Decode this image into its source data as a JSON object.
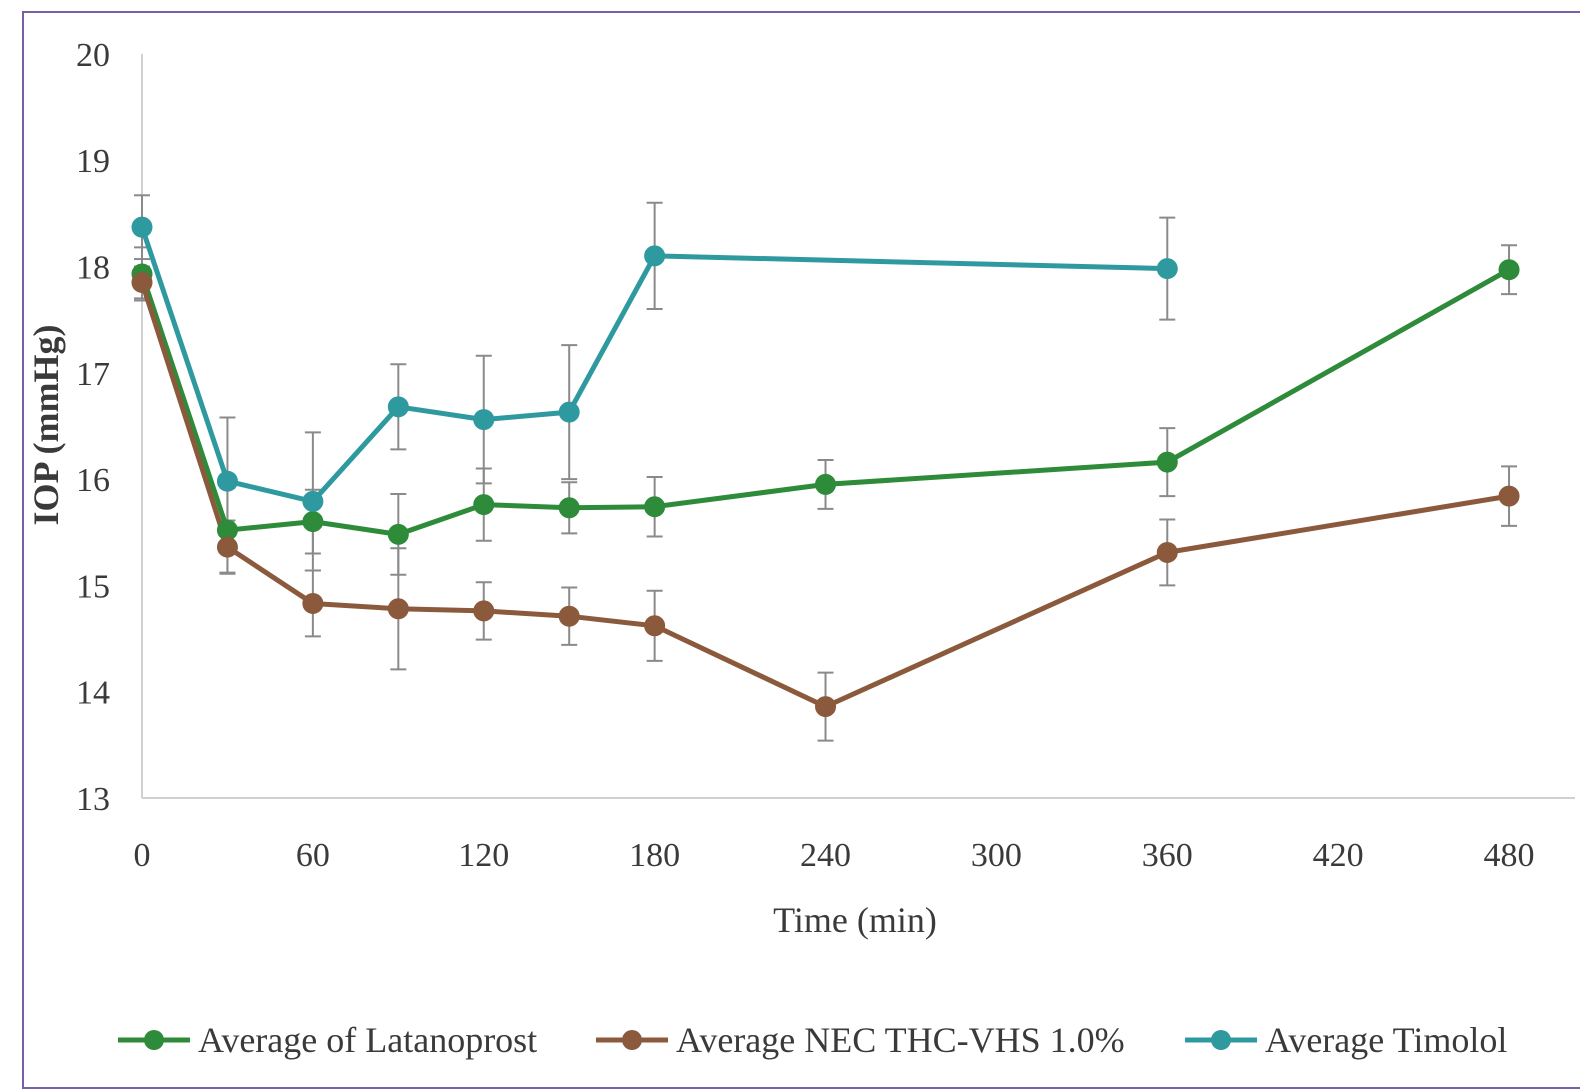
{
  "chart_data": {
    "type": "line",
    "xlabel": "Time (min)",
    "ylabel": "IOP (mmHg)",
    "xlim": [
      0,
      490
    ],
    "ylim": [
      13,
      20
    ],
    "x_ticks": [
      0,
      60,
      120,
      180,
      240,
      300,
      360,
      420,
      480
    ],
    "y_ticks": [
      13,
      14,
      15,
      16,
      17,
      18,
      19,
      20
    ],
    "grid": false,
    "legend_position": "bottom",
    "error_bars": true,
    "series": [
      {
        "name": "Average of Latanoprost",
        "color": "#2e8b3a",
        "points": [
          {
            "x": 0,
            "y": 17.93,
            "err": 0.25
          },
          {
            "x": 30,
            "y": 15.52,
            "err": 0.4
          },
          {
            "x": 60,
            "y": 15.6,
            "err": 0.3
          },
          {
            "x": 90,
            "y": 15.48,
            "err": 0.38
          },
          {
            "x": 120,
            "y": 15.76,
            "err": 0.34
          },
          {
            "x": 150,
            "y": 15.73,
            "err": 0.24
          },
          {
            "x": 180,
            "y": 15.74,
            "err": 0.28
          },
          {
            "x": 240,
            "y": 15.95,
            "err": 0.23
          },
          {
            "x": 360,
            "y": 16.16,
            "err": 0.32
          },
          {
            "x": 480,
            "y": 17.97,
            "err": 0.23
          }
        ]
      },
      {
        "name": "Average NEC THC-VHS 1.0%",
        "color": "#8b5a3c",
        "points": [
          {
            "x": 0,
            "y": 17.85,
            "err": 0.15
          },
          {
            "x": 30,
            "y": 15.36,
            "err": 0.25
          },
          {
            "x": 60,
            "y": 14.83,
            "err": 0.31
          },
          {
            "x": 90,
            "y": 14.78,
            "err": 0.57
          },
          {
            "x": 120,
            "y": 14.76,
            "err": 0.27
          },
          {
            "x": 150,
            "y": 14.71,
            "err": 0.27
          },
          {
            "x": 180,
            "y": 14.62,
            "err": 0.33
          },
          {
            "x": 240,
            "y": 13.86,
            "err": 0.32
          },
          {
            "x": 360,
            "y": 15.31,
            "err": 0.31
          },
          {
            "x": 480,
            "y": 15.84,
            "err": 0.28
          }
        ]
      },
      {
        "name": "Average Timolol",
        "color": "#2e9aa0",
        "points": [
          {
            "x": 0,
            "y": 18.37,
            "err": 0.3
          },
          {
            "x": 30,
            "y": 15.98,
            "err": 0.6
          },
          {
            "x": 60,
            "y": 15.79,
            "err": 0.65
          },
          {
            "x": 90,
            "y": 16.68,
            "err": 0.4
          },
          {
            "x": 120,
            "y": 16.56,
            "err": 0.6
          },
          {
            "x": 150,
            "y": 16.63,
            "err": 0.63
          },
          {
            "x": 180,
            "y": 18.1,
            "err": 0.5
          },
          {
            "x": 360,
            "y": 17.98,
            "err": 0.48
          }
        ]
      }
    ]
  }
}
